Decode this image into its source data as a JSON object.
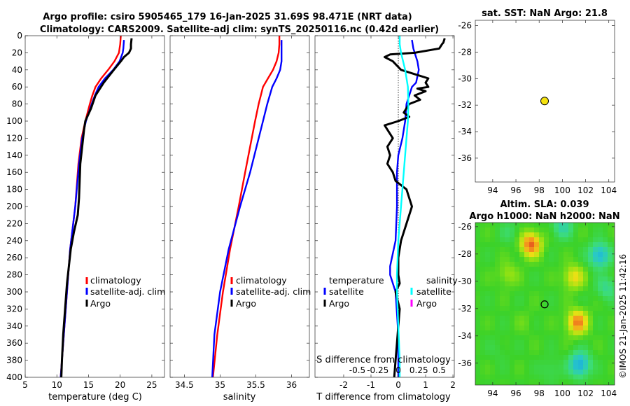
{
  "header": {
    "title_line1": "Argo profile: csiro 5905465_179 16-Jan-2025 31.69S 98.471E (NRT data)",
    "title_line2": "Climatology: CARS2009. Satellite-adj clim: synTS_20250116.nc (0.42d earlier)"
  },
  "colors": {
    "climatology": "#ff0000",
    "satellite": "#0000ff",
    "argo": "#000000",
    "sat_salinity": "#00ffff",
    "argo_salinity": "#ff00ff",
    "marker": "#f5e20f"
  },
  "chart_data": [
    {
      "type": "line",
      "name": "temperature-panel",
      "xlabel": "temperature (deg C)",
      "ylabel": "",
      "xlim": [
        5,
        27
      ],
      "ylim": [
        400,
        0
      ],
      "xticks": [
        "5",
        "10",
        "15",
        "20",
        "25"
      ],
      "xtick_values": [
        5,
        10,
        15,
        20,
        25
      ],
      "yticks": [
        "0",
        "20",
        "40",
        "60",
        "80",
        "100",
        "120",
        "140",
        "160",
        "180",
        "200",
        "220",
        "240",
        "260",
        "280",
        "300",
        "320",
        "340",
        "360",
        "380",
        "400"
      ],
      "ytick_values": [
        0,
        20,
        40,
        60,
        80,
        100,
        120,
        140,
        160,
        180,
        200,
        220,
        240,
        260,
        280,
        300,
        320,
        340,
        360,
        380,
        400
      ],
      "legend": [
        "climatology",
        "satellite-adj. clim",
        "Argo"
      ],
      "series": [
        {
          "name": "climatology",
          "color": "#ff0000",
          "depth": [
            0,
            10,
            20,
            30,
            40,
            50,
            60,
            70,
            80,
            100,
            120,
            150,
            200,
            250,
            300,
            350,
            400
          ],
          "values": [
            20.1,
            20.0,
            19.8,
            19.1,
            18.1,
            17.0,
            16.1,
            15.6,
            15.2,
            14.5,
            13.9,
            13.4,
            12.9,
            12.1,
            11.6,
            11.1,
            10.6
          ]
        },
        {
          "name": "satellite-adj. clim",
          "color": "#0000ff",
          "depth": [
            5,
            15,
            20,
            30,
            40,
            50,
            60,
            70,
            80,
            100,
            120,
            150,
            200,
            250,
            300,
            350,
            400
          ],
          "values": [
            20.6,
            20.5,
            20.4,
            19.9,
            18.9,
            17.6,
            16.6,
            16.0,
            15.5,
            14.6,
            14.0,
            13.5,
            12.9,
            12.1,
            11.6,
            11.1,
            10.6
          ]
        },
        {
          "name": "Argo",
          "color": "#000000",
          "depth": [
            3,
            10,
            15,
            20,
            25,
            30,
            40,
            55,
            70,
            85,
            95,
            100,
            110,
            130,
            150,
            170,
            190,
            200,
            210,
            230,
            250,
            270,
            290,
            320,
            350,
            380,
            400
          ],
          "values": [
            21.8,
            21.7,
            21.7,
            21.4,
            20.6,
            20.1,
            19.0,
            17.4,
            16.1,
            15.4,
            14.8,
            14.5,
            14.3,
            14.0,
            13.7,
            13.6,
            13.5,
            13.4,
            13.3,
            12.7,
            12.2,
            11.9,
            11.6,
            11.3,
            11.0,
            10.8,
            10.7
          ]
        }
      ]
    },
    {
      "type": "line",
      "name": "salinity-panel",
      "xlabel": "salinity",
      "xlim": [
        34.3,
        36.25
      ],
      "ylim": [
        400,
        0
      ],
      "xticks": [
        "34.5",
        "35",
        "35.5",
        "36"
      ],
      "xtick_values": [
        34.5,
        35,
        35.5,
        36
      ],
      "legend": [
        "climatology",
        "satellite-adj. clim",
        "Argo"
      ],
      "series": [
        {
          "name": "climatology",
          "color": "#ff0000",
          "depth": [
            0,
            10,
            20,
            30,
            40,
            50,
            60,
            80,
            100,
            130,
            160,
            200,
            250,
            300,
            350,
            400
          ],
          "values": [
            35.83,
            35.83,
            35.82,
            35.79,
            35.74,
            35.67,
            35.6,
            35.54,
            35.49,
            35.42,
            35.35,
            35.26,
            35.14,
            35.04,
            34.96,
            34.9
          ]
        },
        {
          "name": "satellite-adj. clim",
          "color": "#0000ff",
          "depth": [
            5,
            10,
            20,
            30,
            40,
            50,
            60,
            80,
            100,
            130,
            160,
            200,
            250,
            300,
            350,
            400
          ],
          "values": [
            35.86,
            35.86,
            35.86,
            35.86,
            35.84,
            35.79,
            35.73,
            35.66,
            35.6,
            35.51,
            35.42,
            35.28,
            35.12,
            35.0,
            34.92,
            34.89
          ]
        },
        {
          "name": "Argo",
          "color": "#000000",
          "depth": [],
          "values": []
        }
      ]
    },
    {
      "type": "line",
      "name": "difference-panel",
      "xlabel": "T difference from climatology",
      "xlabel_top": "S difference from climatology",
      "xlim": [
        -3.05,
        2.05
      ],
      "ylim": [
        400,
        0
      ],
      "xticks": [
        "-2",
        "-1",
        "0",
        "1",
        "2"
      ],
      "xtick_values": [
        -2,
        -1,
        0,
        1,
        2
      ],
      "s_ticks": [
        "-0.5",
        "-0.25",
        "0",
        "0.25",
        "0.5"
      ],
      "s_tick_values": [
        -1.5,
        -0.75,
        0,
        0.75,
        1.5
      ],
      "legend": {
        "temperature_title": "temperature",
        "salinity_title": "salinity",
        "items": [
          "satellite",
          "Argo",
          "satellite",
          "Argo"
        ]
      },
      "series": [
        {
          "name": "T satellite",
          "color": "#0000ff",
          "depth": [
            5,
            15,
            20,
            30,
            40,
            55,
            60,
            70,
            80,
            100,
            120,
            140,
            160,
            200,
            240,
            270,
            280,
            290,
            300,
            350,
            400
          ],
          "values": [
            0.5,
            0.55,
            0.6,
            0.7,
            0.75,
            0.65,
            0.5,
            0.4,
            0.3,
            0.25,
            0.15,
            0.0,
            -0.05,
            -0.05,
            -0.1,
            -0.3,
            -0.3,
            -0.2,
            -0.1,
            0.0,
            0.0
          ]
        },
        {
          "name": "T Argo",
          "color": "#000000",
          "depth": [
            3,
            8,
            10,
            15,
            20,
            22,
            25,
            30,
            40,
            45,
            50,
            55,
            60,
            62,
            65,
            70,
            75,
            80,
            90,
            95,
            100,
            105,
            110,
            120,
            130,
            140,
            150,
            160,
            170,
            180,
            190,
            200,
            220,
            240,
            260,
            280,
            290,
            300,
            320,
            340,
            360,
            380,
            400
          ],
          "values": [
            1.7,
            1.65,
            1.6,
            1.5,
            0.6,
            -0.3,
            -0.5,
            -0.2,
            0.1,
            0.6,
            1.1,
            1.0,
            1.1,
            0.7,
            1.0,
            0.6,
            0.8,
            0.4,
            0.2,
            0.4,
            0.0,
            -0.5,
            -0.4,
            -0.2,
            -0.4,
            -0.3,
            -0.4,
            -0.2,
            -0.1,
            0.3,
            0.4,
            0.5,
            0.3,
            0.1,
            0.0,
            0.0,
            0.05,
            -0.1,
            0.05,
            0.0,
            -0.05,
            -0.1,
            -0.15
          ]
        },
        {
          "name": "S satellite",
          "color": "#00ffff",
          "depth": [
            0,
            10,
            20,
            40,
            60,
            80,
            100,
            120,
            160,
            200,
            240,
            280,
            300,
            340,
            380,
            400
          ],
          "values": [
            0.05,
            0.05,
            0.1,
            0.25,
            0.35,
            0.37,
            0.35,
            0.3,
            0.2,
            0.1,
            0.0,
            -0.05,
            -0.05,
            0.0,
            0.05,
            0.05
          ]
        },
        {
          "name": "S Argo",
          "color": "#ff00ff",
          "depth": [],
          "values": []
        }
      ]
    },
    {
      "type": "scatter",
      "name": "sst-map",
      "title": "sat. SST: NaN Argo: 21.8",
      "xlim": [
        92.5,
        104.5
      ],
      "ylim": [
        -37.8,
        -25.6
      ],
      "xticks": [
        "94",
        "96",
        "98",
        "100",
        "102",
        "104"
      ],
      "xtick_values": [
        94,
        96,
        98,
        100,
        102,
        104
      ],
      "yticks": [
        "-26",
        "-28",
        "-30",
        "-32",
        "-34",
        "-36"
      ],
      "ytick_values": [
        -26,
        -28,
        -30,
        -32,
        -34,
        -36
      ],
      "points": [
        {
          "lon": 98.471,
          "lat": -31.69
        }
      ]
    },
    {
      "type": "heatmap",
      "name": "sla-map",
      "title_line1": "Altim. SLA: 0.039",
      "title_line2": "Argo h1000: NaN h2000: NaN",
      "xlim": [
        92.5,
        104.5
      ],
      "ylim": [
        -37.6,
        -25.7
      ],
      "xticks": [
        "94",
        "96",
        "98",
        "100",
        "102",
        "104"
      ],
      "xtick_values": [
        94,
        96,
        98,
        100,
        102,
        104
      ],
      "yticks": [
        "-26",
        "-28",
        "-30",
        "-32",
        "-34",
        "-36"
      ],
      "ytick_values": [
        -26,
        -28,
        -30,
        -32,
        -34,
        -36
      ],
      "points": [
        {
          "lon": 98.471,
          "lat": -31.69
        }
      ],
      "blobs": [
        {
          "lon": 97.3,
          "lat": -27.3,
          "amp": 0.55
        },
        {
          "lon": 101.0,
          "lat": -29.7,
          "amp": 0.3
        },
        {
          "lon": 101.3,
          "lat": -33.0,
          "amp": 0.5
        },
        {
          "lon": 95.3,
          "lat": -29.5,
          "amp": 0.15
        },
        {
          "lon": 96.8,
          "lat": -33.0,
          "amp": 0.05
        },
        {
          "lon": 103.2,
          "lat": -28.1,
          "amp": -0.45
        },
        {
          "lon": 101.5,
          "lat": -36.1,
          "amp": -0.5
        },
        {
          "lon": 103.8,
          "lat": -30.5,
          "amp": -0.2
        },
        {
          "lon": 100.0,
          "lat": -26.0,
          "amp": -0.25
        },
        {
          "lon": 95.5,
          "lat": -26.4,
          "amp": -0.1
        },
        {
          "lon": 99.0,
          "lat": -36.5,
          "amp": -0.1
        },
        {
          "lon": 94.5,
          "lat": -35.0,
          "amp": -0.05
        }
      ]
    }
  ],
  "footer": {
    "timestamp": "©IMOS 21-Jan-2025 11:42:16"
  }
}
